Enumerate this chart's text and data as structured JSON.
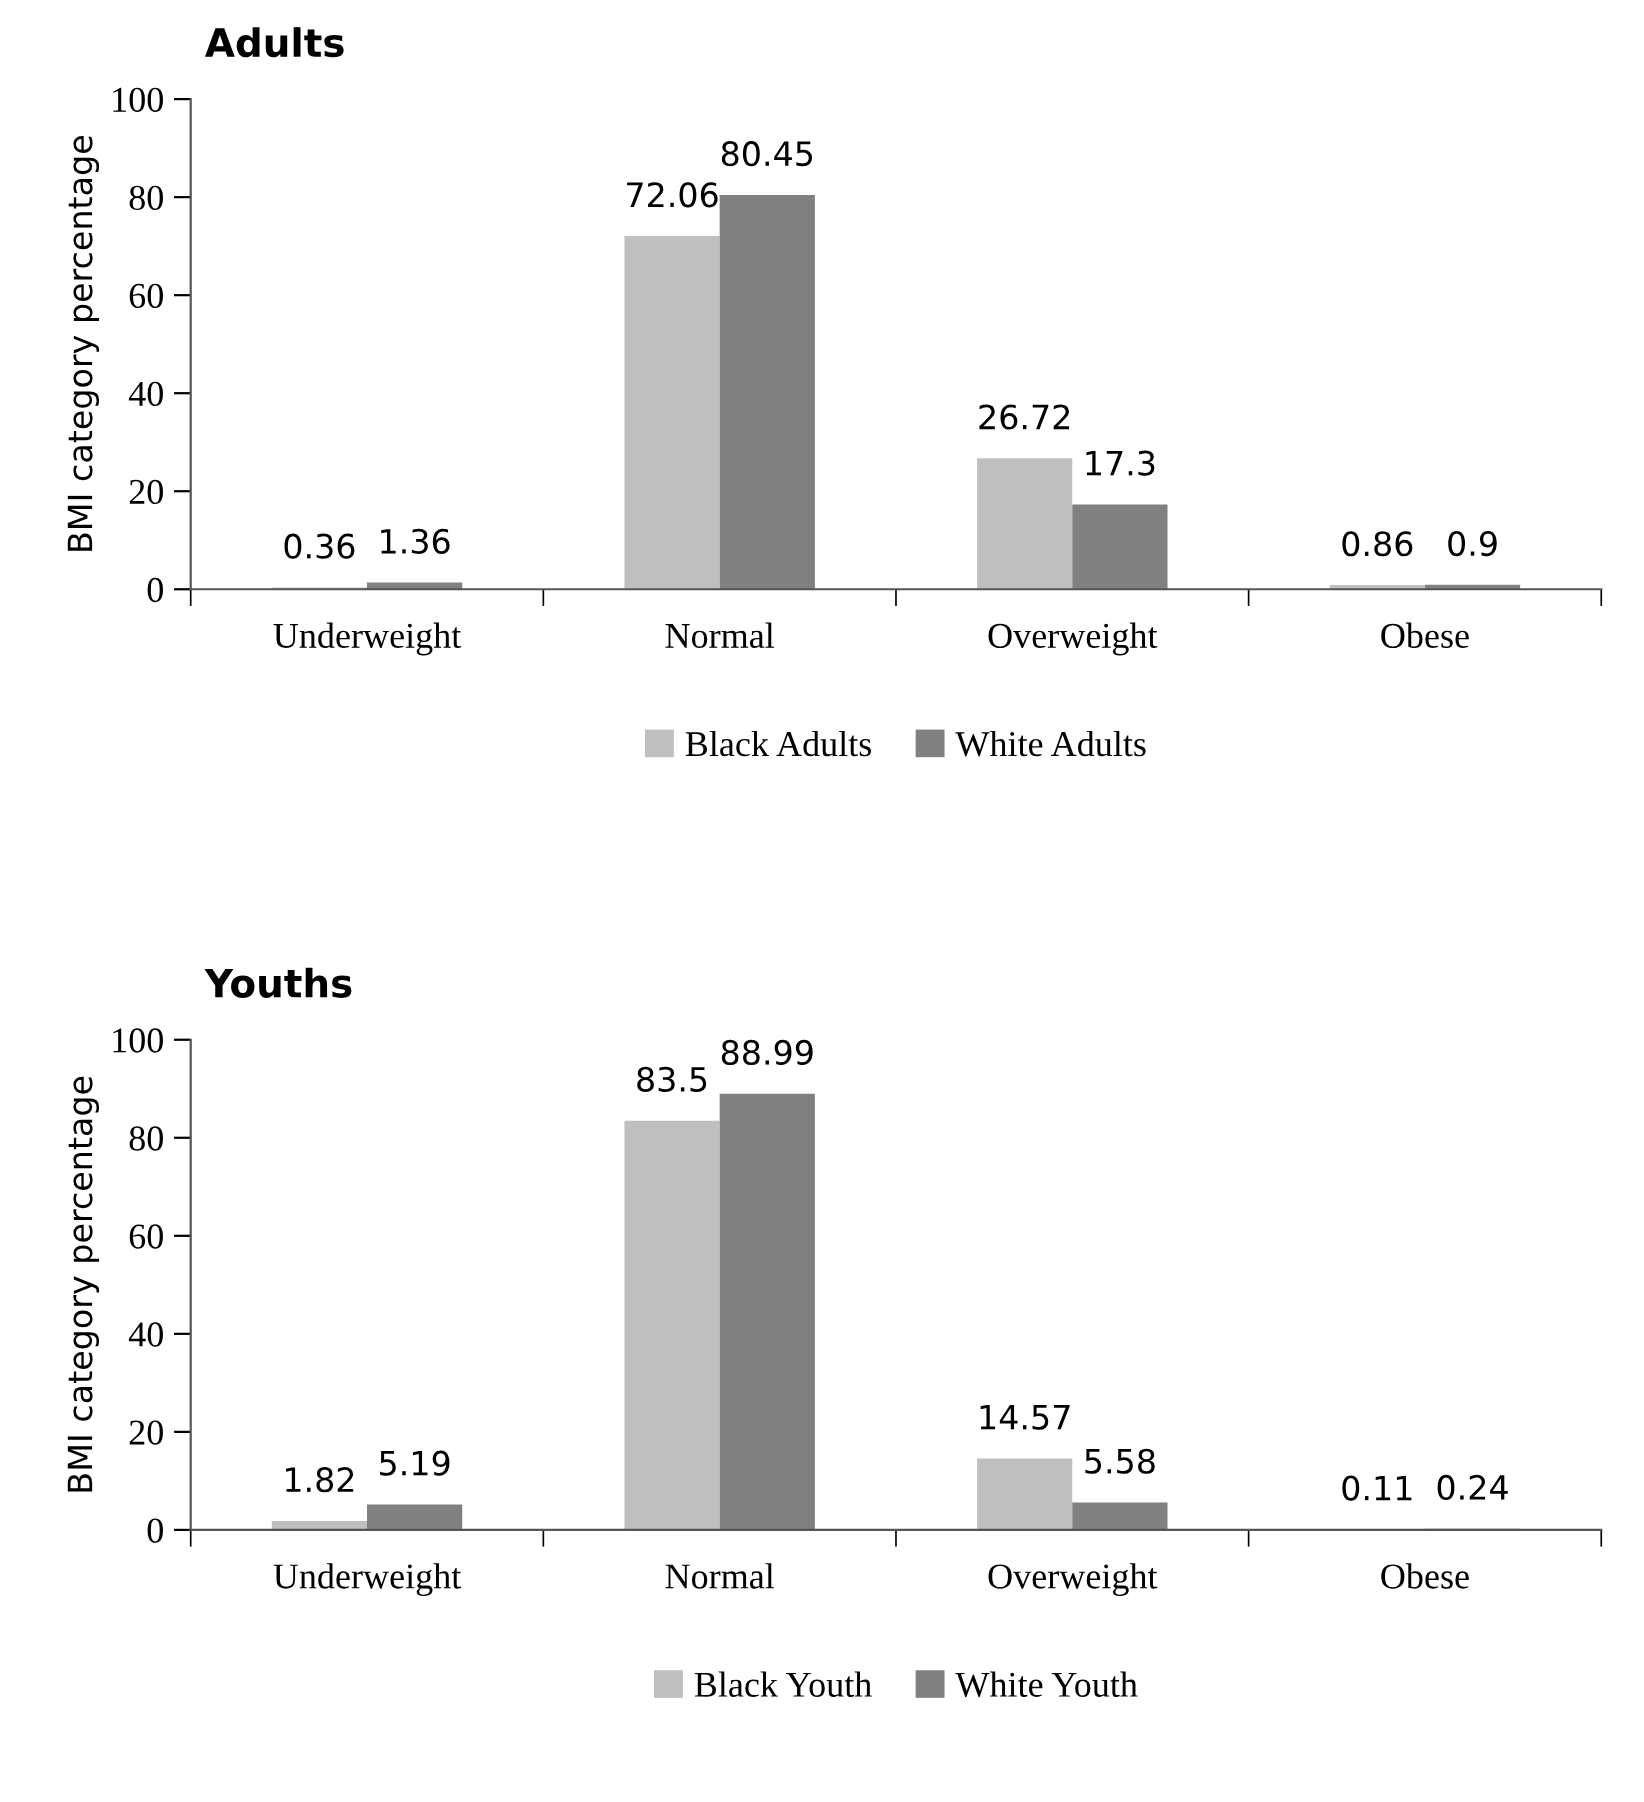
{
  "chart_data": [
    {
      "type": "bar",
      "title": "Adults",
      "ylabel": "BMI category percentage",
      "categories": [
        "Underweight",
        "Normal",
        "Overweight",
        "Obese"
      ],
      "series": [
        {
          "name": "Black Adults",
          "color": "#bfbfbf",
          "values": [
            0.36,
            72.06,
            26.72,
            0.86
          ]
        },
        {
          "name": "White Adults",
          "color": "#808080",
          "values": [
            1.36,
            80.45,
            17.3,
            0.9
          ]
        }
      ],
      "ylim": [
        0,
        100
      ],
      "yticks": [
        0,
        20,
        40,
        60,
        80,
        100
      ],
      "data_labels": true,
      "legend": "bottom",
      "grid": false
    },
    {
      "type": "bar",
      "title": "Youths",
      "ylabel": "BMI category percentage",
      "categories": [
        "Underweight",
        "Normal",
        "Overweight",
        "Obese"
      ],
      "series": [
        {
          "name": "Black Youth",
          "color": "#bfbfbf",
          "values": [
            1.82,
            83.5,
            14.57,
            0.11
          ]
        },
        {
          "name": "White Youth",
          "color": "#808080",
          "values": [
            5.19,
            88.99,
            5.58,
            0.24
          ]
        }
      ],
      "ylim": [
        0,
        100
      ],
      "yticks": [
        0,
        20,
        40,
        60,
        80,
        100
      ],
      "data_labels": true,
      "legend": "bottom",
      "grid": false
    }
  ]
}
